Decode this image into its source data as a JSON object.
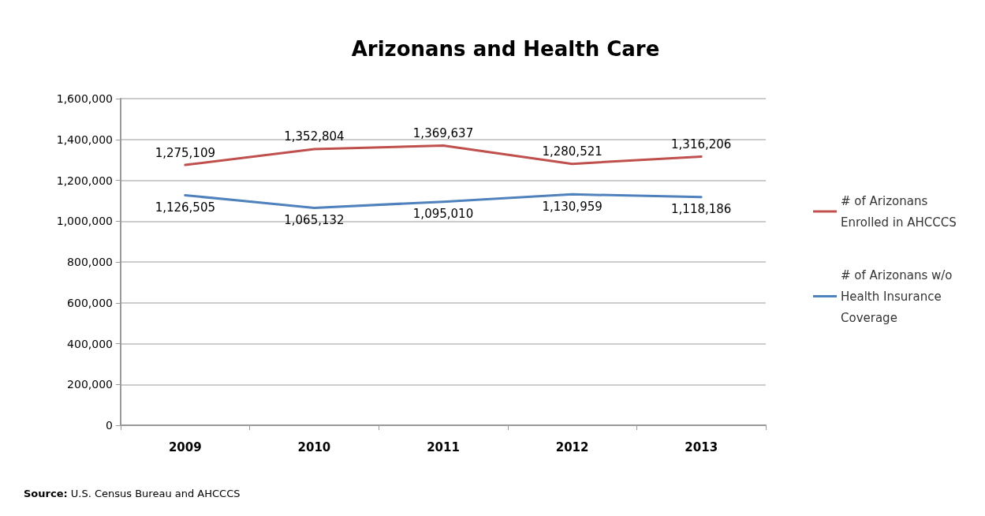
{
  "chart_data": {
    "type": "line",
    "title": "Arizonans and Health Care",
    "categories": [
      "2009",
      "2010",
      "2011",
      "2012",
      "2013"
    ],
    "series": [
      {
        "name": "# of Arizonans Enrolled in AHCCCS",
        "color": "#c0504d",
        "values": [
          1275109,
          1352804,
          1369637,
          1280521,
          1316206
        ],
        "value_labels": [
          "1,275,109",
          "1,352,804",
          "1,369,637",
          "1,280,521",
          "1,316,206"
        ]
      },
      {
        "name": "# of Arizonans w/o Health Insurance Coverage",
        "color": "#4f81bd",
        "values": [
          1126505,
          1065132,
          1095010,
          1130959,
          1118186
        ],
        "value_labels": [
          "1,126,505",
          "1,065,132",
          "1,095,010",
          "1,130,959",
          "1,118,186"
        ]
      }
    ],
    "ylim": [
      0,
      1600000
    ],
    "yticks": [
      0,
      {
        "value": 200000,
        "label": "200,000"
      },
      {
        "value": 400000,
        "label": "400,000"
      },
      {
        "value": 600000,
        "label": "600,000"
      },
      {
        "value": 800000,
        "label": "800,000"
      },
      {
        "value": 1000000,
        "label": "1,000,000"
      },
      {
        "value": 1200000,
        "label": "1,200,000"
      },
      {
        "value": 1400000,
        "label": "1,400,000"
      },
      {
        "value": 1600000,
        "label": "1,600,000"
      }
    ],
    "grid": "y",
    "legend": "right",
    "marker": "none",
    "line_style": "solid",
    "annotations": [
      "Source: U.S. Census Bureau and AHCCCS"
    ]
  }
}
